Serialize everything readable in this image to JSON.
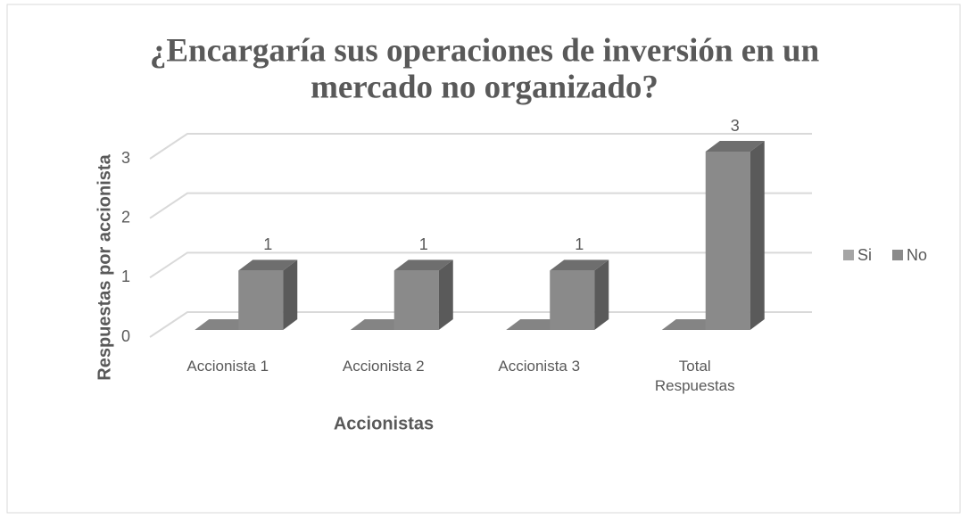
{
  "chart_data": {
    "type": "bar3d",
    "title": [
      "¿Encargaría sus operaciones de inversión en un",
      "mercado no organizado?"
    ],
    "categories": [
      "Accionista 1",
      "Accionista 2",
      "Accionista 3",
      "Total Respuestas"
    ],
    "series": [
      {
        "name": "Si",
        "color": "#a5a5a5",
        "values": [
          0,
          0,
          0,
          0
        ],
        "labels": false
      },
      {
        "name": "No",
        "color": "#8a8a8a",
        "values": [
          1,
          1,
          1,
          3
        ],
        "labels": true
      }
    ],
    "xlabel": "Accionistas",
    "ylabel": "Respuestas por accionista",
    "ylim": [
      0,
      3
    ],
    "yticks": [
      0,
      1,
      2,
      3
    ],
    "grid": true,
    "legend": "right"
  }
}
